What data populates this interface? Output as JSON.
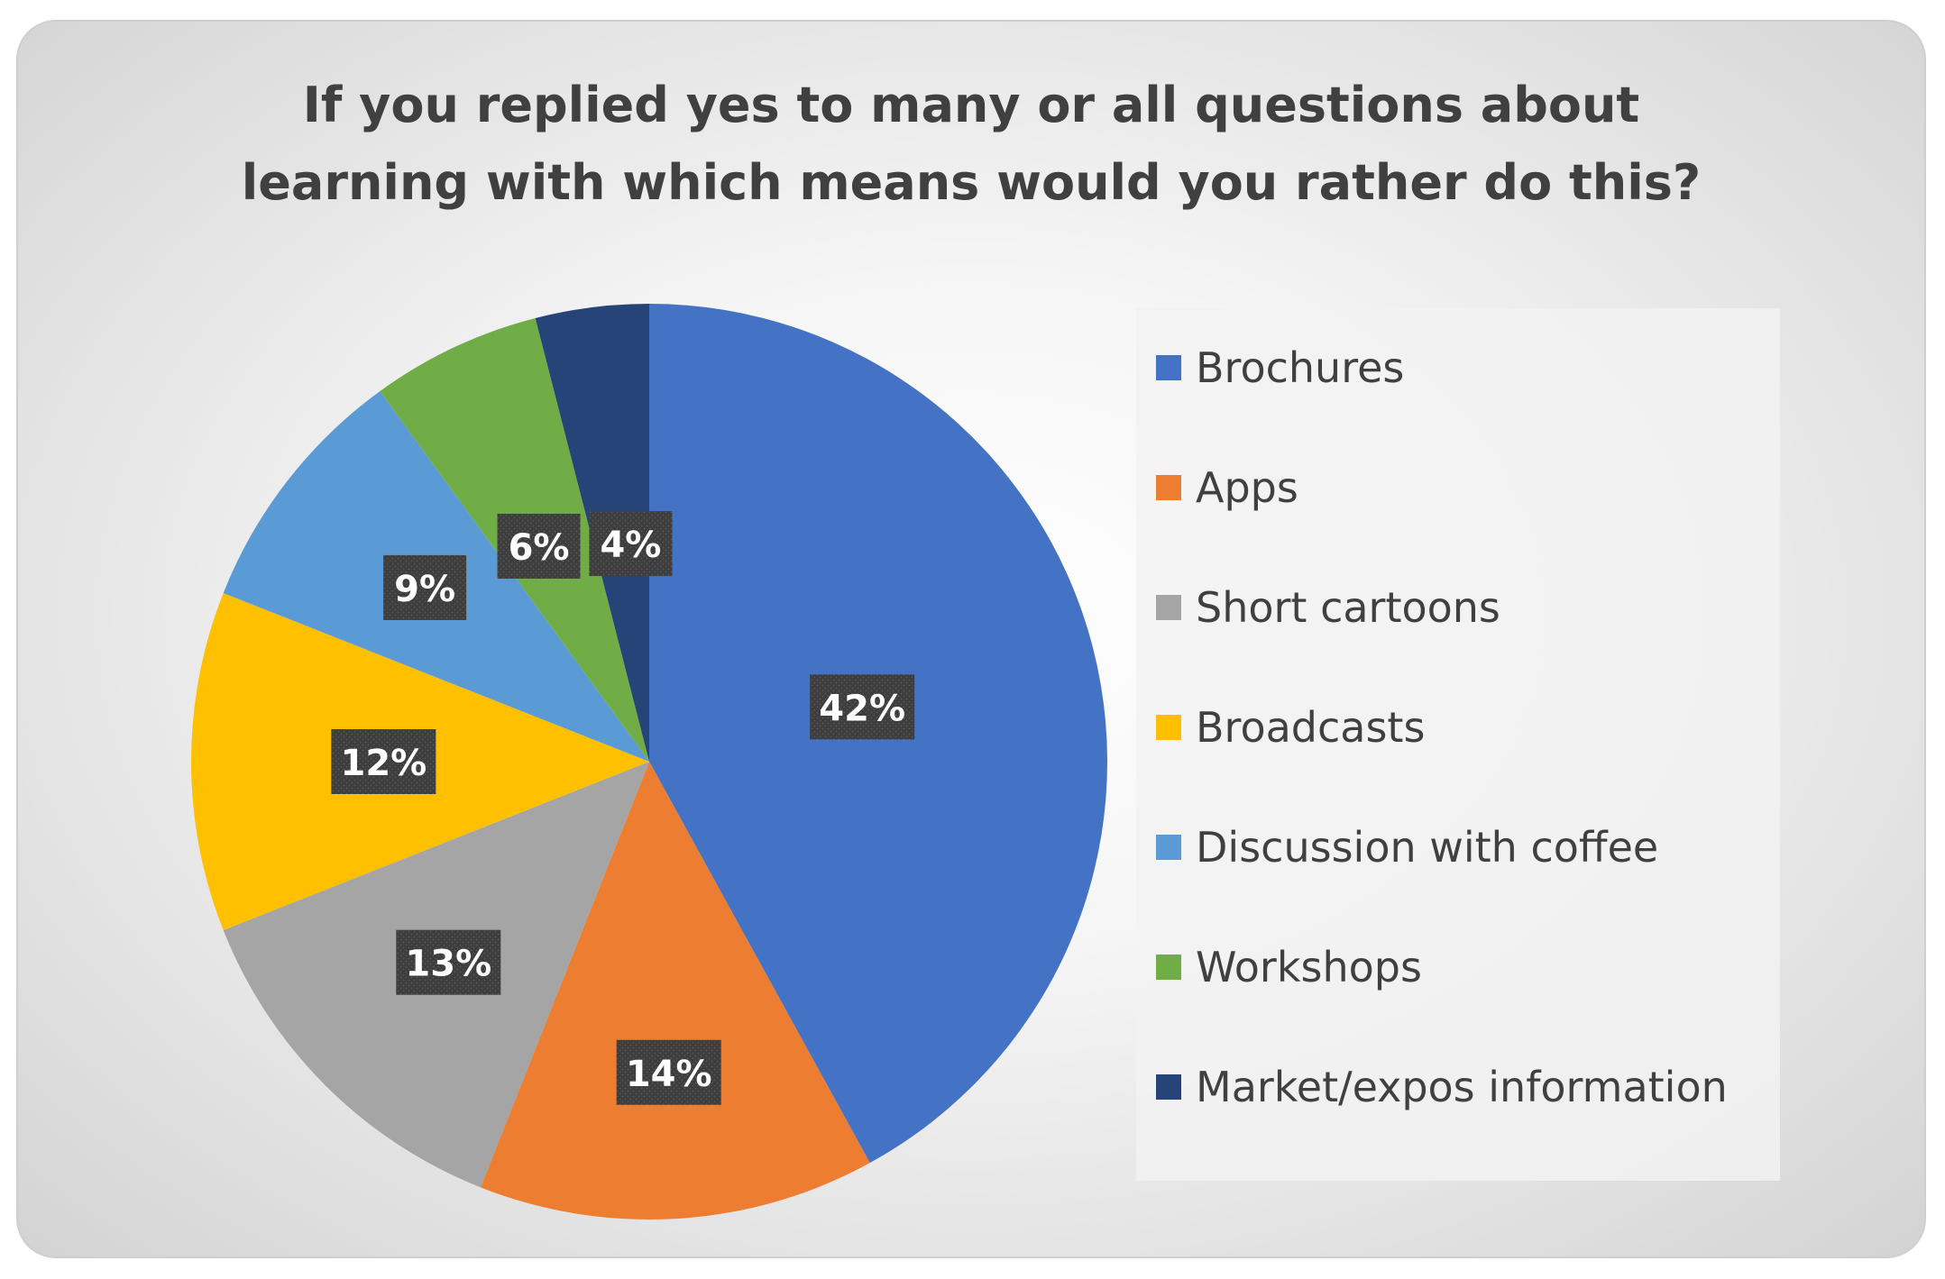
{
  "chart_data": {
    "type": "pie",
    "title_lines": [
      "If you replied yes to many or all questions about",
      "learning with which means would you rather do this?"
    ],
    "categories": [
      "Brochures",
      "Apps",
      "Short cartoons",
      "Broadcasts",
      "Discussion with coffee",
      "Workshops",
      "Market/expos information"
    ],
    "values": [
      42,
      14,
      13,
      12,
      9,
      6,
      4
    ],
    "data_labels": [
      "42%",
      "14%",
      "13%",
      "12%",
      "9%",
      "6%",
      "4%"
    ],
    "colors": [
      "#4472C4",
      "#ED7D31",
      "#A5A5A5",
      "#FFC000",
      "#5B9BD5",
      "#70AD47",
      "#264478"
    ],
    "start_angle": "12 o'clock",
    "direction": "clockwise",
    "legend_position": "right"
  }
}
